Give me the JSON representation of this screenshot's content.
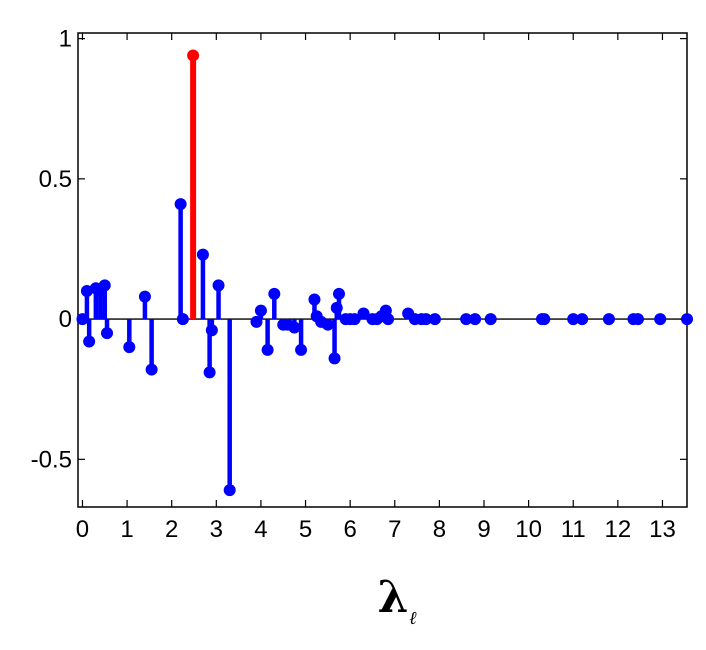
{
  "chart_data": {
    "type": "stem",
    "title": "",
    "xlabel": "λ",
    "xlabel_subscript": "ℓ",
    "ylabel": "",
    "xlim": [
      -0.1,
      13.55
    ],
    "ylim": [
      -0.67,
      1.02
    ],
    "xticks": [
      0,
      1,
      2,
      3,
      4,
      5,
      6,
      7,
      8,
      9,
      10,
      11,
      12,
      13
    ],
    "xtick_labels": [
      "0",
      "1",
      "2",
      "3",
      "4",
      "5",
      "6",
      "7",
      "8",
      "9",
      "10",
      "11",
      "12",
      "13"
    ],
    "yticks": [
      -0.5,
      0,
      0.5,
      1
    ],
    "ytick_labels": [
      "-0.5",
      "0",
      "0.5",
      "1"
    ],
    "grid": false,
    "baseline": 0,
    "series": [
      {
        "color": "#0000ff",
        "x": [
          0.0,
          0.1,
          0.15,
          0.3,
          0.4,
          0.5,
          0.55,
          1.05,
          1.4,
          1.55,
          2.2,
          2.25,
          2.7,
          2.85,
          2.9,
          3.05,
          3.3,
          3.9,
          4.0,
          4.15,
          4.3,
          4.5,
          4.6,
          4.75,
          4.9,
          5.2,
          5.25,
          5.35,
          5.5,
          5.65,
          5.7,
          5.75,
          5.9,
          6.0,
          6.1,
          6.3,
          6.5,
          6.6,
          6.7,
          6.8,
          6.85,
          7.3,
          7.45,
          7.6,
          7.7,
          7.9,
          8.6,
          8.8,
          9.15,
          10.3,
          10.35,
          11.0,
          11.2,
          11.8,
          12.35,
          12.45,
          12.95,
          13.55
        ],
        "y": [
          0.0,
          0.1,
          -0.08,
          0.11,
          0.1,
          0.12,
          -0.05,
          -0.1,
          0.08,
          -0.18,
          0.41,
          0.0,
          0.23,
          -0.19,
          -0.04,
          0.12,
          -0.61,
          -0.01,
          0.03,
          -0.11,
          0.09,
          -0.02,
          -0.02,
          -0.03,
          -0.11,
          0.07,
          0.01,
          -0.01,
          -0.02,
          -0.14,
          0.04,
          0.09,
          0.0,
          0.0,
          0.0,
          0.02,
          0.0,
          0.0,
          0.01,
          0.03,
          0.0,
          0.02,
          0.0,
          0.0,
          0.0,
          0.0,
          0.0,
          0.0,
          0.0,
          0.0,
          0.0,
          0.0,
          0.0,
          0.0,
          0.0,
          0.0,
          0.0,
          0.0
        ]
      },
      {
        "color": "#ff0000",
        "x": [
          2.48
        ],
        "y": [
          0.94
        ]
      }
    ]
  }
}
